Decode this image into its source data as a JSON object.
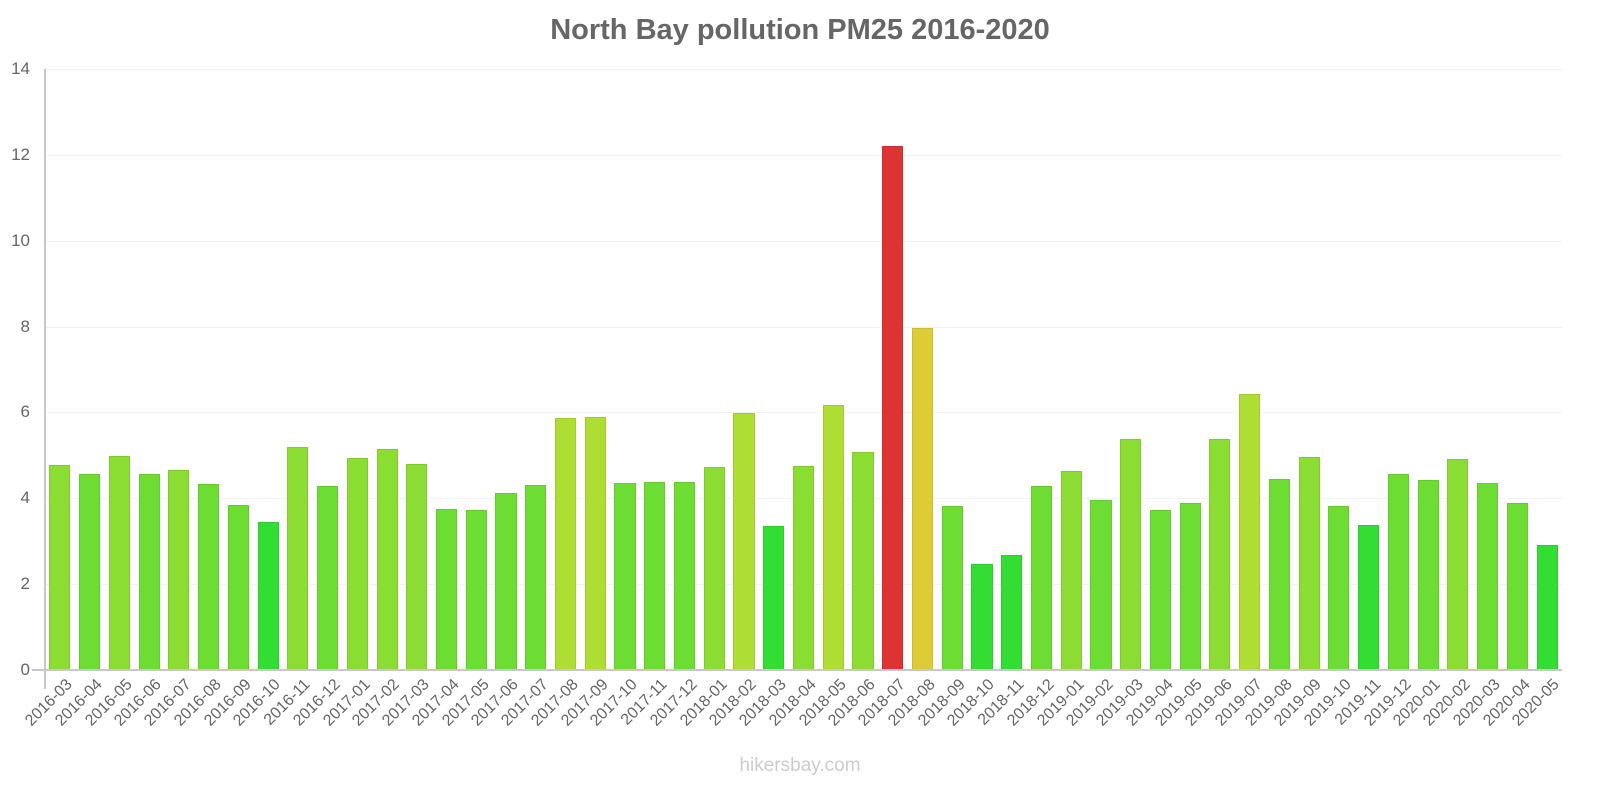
{
  "chart_data": {
    "type": "bar",
    "title": "North Bay pollution PM25 2016-2020",
    "xlabel": "",
    "ylabel": "",
    "ylim": [
      0,
      14
    ],
    "yticks": [
      0,
      2,
      4,
      6,
      8,
      10,
      12,
      14
    ],
    "grid": true,
    "legend": "none",
    "categories": [
      "2016-03",
      "2016-04",
      "2016-05",
      "2016-06",
      "2016-07",
      "2016-08",
      "2016-09",
      "2016-10",
      "2016-11",
      "2016-12",
      "2017-01",
      "2017-02",
      "2017-03",
      "2017-04",
      "2017-05",
      "2017-06",
      "2017-07",
      "2017-08",
      "2017-09",
      "2017-10",
      "2017-11",
      "2017-12",
      "2018-01",
      "2018-02",
      "2018-03",
      "2018-04",
      "2018-05",
      "2018-06",
      "2018-07",
      "2018-08",
      "2018-09",
      "2018-10",
      "2018-11",
      "2018-12",
      "2019-01",
      "2019-02",
      "2019-03",
      "2019-04",
      "2019-05",
      "2019-06",
      "2019-07",
      "2019-08",
      "2019-09",
      "2019-10",
      "2019-11",
      "2019-12",
      "2020-01",
      "2020-02",
      "2020-03",
      "2020-04",
      "2020-05"
    ],
    "values": [
      4.78,
      4.57,
      4.98,
      4.57,
      4.66,
      4.33,
      3.84,
      3.45,
      5.19,
      4.29,
      4.94,
      5.15,
      4.8,
      3.75,
      3.73,
      4.12,
      4.31,
      5.87,
      5.89,
      4.36,
      4.38,
      4.38,
      4.73,
      5.99,
      3.35,
      4.75,
      6.17,
      5.08,
      12.2,
      7.97,
      3.82,
      2.47,
      2.68,
      4.29,
      4.64,
      3.96,
      5.38,
      3.73,
      3.89,
      5.38,
      6.43,
      4.45,
      4.96,
      3.82,
      3.38,
      4.57,
      4.43,
      4.91,
      4.36,
      3.89,
      2.91
    ],
    "colors": [
      "#8cdd33",
      "#6ddd33",
      "#8cdd33",
      "#6ddd33",
      "#8cdd33",
      "#6ddd33",
      "#6ddd33",
      "#33dd33",
      "#8cdd33",
      "#6ddd33",
      "#8cdd33",
      "#8cdd33",
      "#8cdd33",
      "#6ddd33",
      "#6ddd33",
      "#6ddd33",
      "#6ddd33",
      "#aedd33",
      "#aedd33",
      "#6ddd33",
      "#6ddd33",
      "#6ddd33",
      "#8cdd33",
      "#aedd33",
      "#33dd33",
      "#8cdd33",
      "#aedd33",
      "#8cdd33",
      "#dd3333",
      "#ddcc33",
      "#6ddd33",
      "#33dd33",
      "#33dd33",
      "#6ddd33",
      "#8cdd33",
      "#6ddd33",
      "#8cdd33",
      "#6ddd33",
      "#6ddd33",
      "#8cdd33",
      "#aedd33",
      "#6ddd33",
      "#8cdd33",
      "#6ddd33",
      "#33dd33",
      "#6ddd33",
      "#6ddd33",
      "#8cdd33",
      "#6ddd33",
      "#6ddd33",
      "#33dd33"
    ]
  },
  "watermark": "hikersbay.com"
}
